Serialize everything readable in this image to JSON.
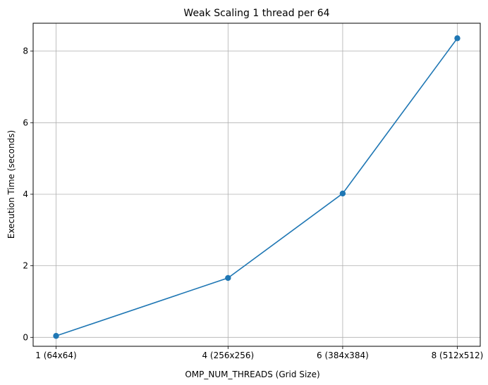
{
  "chart_data": {
    "type": "line",
    "title": "Weak Scaling 1 thread per 64",
    "xlabel": "OMP_NUM_THREADS (Grid Size)",
    "ylabel": "Execution Time (seconds)",
    "x": [
      1,
      4,
      6,
      8
    ],
    "x_tick_labels": [
      "1 (64x64)",
      "4 (256x256)",
      "6 (384x384)",
      "8 (512x512)"
    ],
    "series": [
      {
        "values": [
          0.04,
          1.66,
          4.02,
          8.36
        ]
      }
    ],
    "xlim": [
      0.6,
      8.4
    ],
    "ylim": [
      -0.25,
      8.78
    ],
    "yticks": [
      0,
      2,
      4,
      6,
      8
    ],
    "grid": true,
    "color": "#1f77b4",
    "marker": "circle"
  }
}
